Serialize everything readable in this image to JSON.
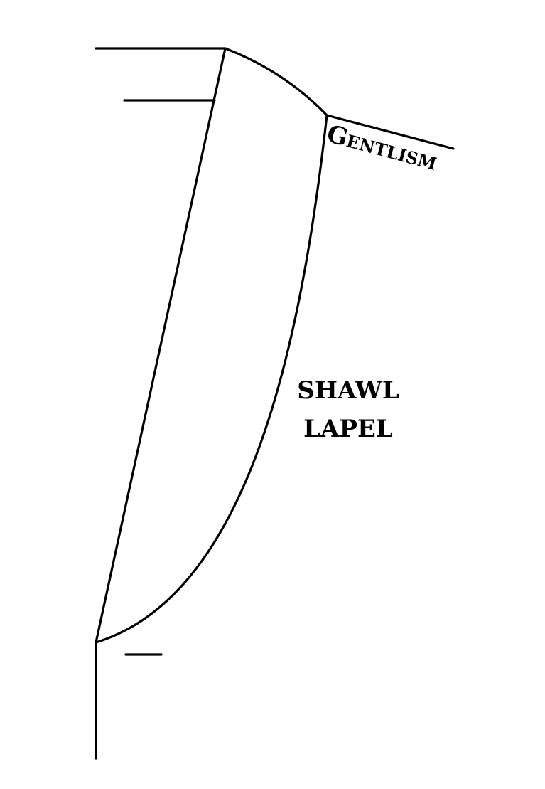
{
  "diagram": {
    "brand": "Gentlism",
    "label_line1": "SHAWL",
    "label_line2": "LAPEL"
  },
  "colors": {
    "background": "#ffffff",
    "ink": "#000000"
  }
}
